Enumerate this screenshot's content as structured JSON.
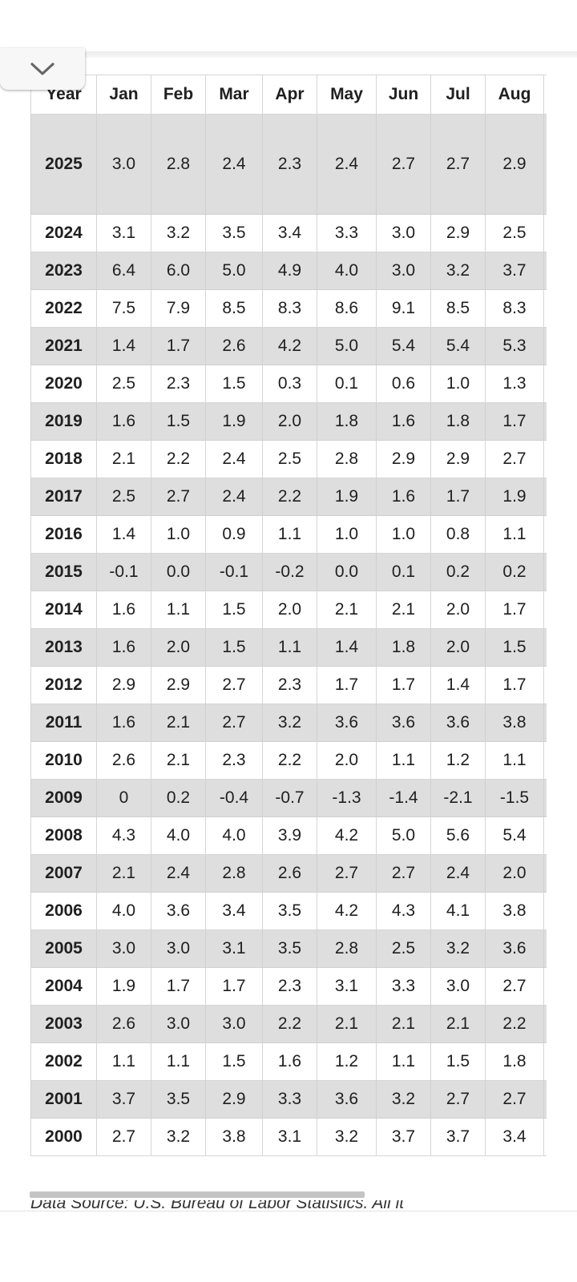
{
  "table": {
    "headers": [
      "Year",
      "Jan",
      "Feb",
      "Mar",
      "Apr",
      "May",
      "Jun",
      "Jul",
      "Aug",
      ""
    ],
    "rows": [
      {
        "year": "2025",
        "values": [
          "3.0",
          "2.8",
          "2.4",
          "2.3",
          "2.4",
          "2.7",
          "2.7",
          "2.9",
          ""
        ]
      },
      {
        "year": "2024",
        "values": [
          "3.1",
          "3.2",
          "3.5",
          "3.4",
          "3.3",
          "3.0",
          "2.9",
          "2.5",
          ""
        ]
      },
      {
        "year": "2023",
        "values": [
          "6.4",
          "6.0",
          "5.0",
          "4.9",
          "4.0",
          "3.0",
          "3.2",
          "3.7",
          ""
        ]
      },
      {
        "year": "2022",
        "values": [
          "7.5",
          "7.9",
          "8.5",
          "8.3",
          "8.6",
          "9.1",
          "8.5",
          "8.3",
          ""
        ]
      },
      {
        "year": "2021",
        "values": [
          "1.4",
          "1.7",
          "2.6",
          "4.2",
          "5.0",
          "5.4",
          "5.4",
          "5.3",
          ""
        ]
      },
      {
        "year": "2020",
        "values": [
          "2.5",
          "2.3",
          "1.5",
          "0.3",
          "0.1",
          "0.6",
          "1.0",
          "1.3",
          ""
        ]
      },
      {
        "year": "2019",
        "values": [
          "1.6",
          "1.5",
          "1.9",
          "2.0",
          "1.8",
          "1.6",
          "1.8",
          "1.7",
          ""
        ]
      },
      {
        "year": "2018",
        "values": [
          "2.1",
          "2.2",
          "2.4",
          "2.5",
          "2.8",
          "2.9",
          "2.9",
          "2.7",
          ""
        ]
      },
      {
        "year": "2017",
        "values": [
          "2.5",
          "2.7",
          "2.4",
          "2.2",
          "1.9",
          "1.6",
          "1.7",
          "1.9",
          ""
        ]
      },
      {
        "year": "2016",
        "values": [
          "1.4",
          "1.0",
          "0.9",
          "1.1",
          "1.0",
          "1.0",
          "0.8",
          "1.1",
          ""
        ]
      },
      {
        "year": "2015",
        "values": [
          "-0.1",
          "0.0",
          "-0.1",
          "-0.2",
          "0.0",
          "0.1",
          "0.2",
          "0.2",
          ""
        ]
      },
      {
        "year": "2014",
        "values": [
          "1.6",
          "1.1",
          "1.5",
          "2.0",
          "2.1",
          "2.1",
          "2.0",
          "1.7",
          ""
        ]
      },
      {
        "year": "2013",
        "values": [
          "1.6",
          "2.0",
          "1.5",
          "1.1",
          "1.4",
          "1.8",
          "2.0",
          "1.5",
          ""
        ]
      },
      {
        "year": "2012",
        "values": [
          "2.9",
          "2.9",
          "2.7",
          "2.3",
          "1.7",
          "1.7",
          "1.4",
          "1.7",
          ""
        ]
      },
      {
        "year": "2011",
        "values": [
          "1.6",
          "2.1",
          "2.7",
          "3.2",
          "3.6",
          "3.6",
          "3.6",
          "3.8",
          ""
        ]
      },
      {
        "year": "2010",
        "values": [
          "2.6",
          "2.1",
          "2.3",
          "2.2",
          "2.0",
          "1.1",
          "1.2",
          "1.1",
          ""
        ]
      },
      {
        "year": "2009",
        "values": [
          "0",
          "0.2",
          "-0.4",
          "-0.7",
          "-1.3",
          "-1.4",
          "-2.1",
          "-1.5",
          ""
        ]
      },
      {
        "year": "2008",
        "values": [
          "4.3",
          "4.0",
          "4.0",
          "3.9",
          "4.2",
          "5.0",
          "5.6",
          "5.4",
          ""
        ]
      },
      {
        "year": "2007",
        "values": [
          "2.1",
          "2.4",
          "2.8",
          "2.6",
          "2.7",
          "2.7",
          "2.4",
          "2.0",
          ""
        ]
      },
      {
        "year": "2006",
        "values": [
          "4.0",
          "3.6",
          "3.4",
          "3.5",
          "4.2",
          "4.3",
          "4.1",
          "3.8",
          ""
        ]
      },
      {
        "year": "2005",
        "values": [
          "3.0",
          "3.0",
          "3.1",
          "3.5",
          "2.8",
          "2.5",
          "3.2",
          "3.6",
          ""
        ]
      },
      {
        "year": "2004",
        "values": [
          "1.9",
          "1.7",
          "1.7",
          "2.3",
          "3.1",
          "3.3",
          "3.0",
          "2.7",
          ""
        ]
      },
      {
        "year": "2003",
        "values": [
          "2.6",
          "3.0",
          "3.0",
          "2.2",
          "2.1",
          "2.1",
          "2.1",
          "2.2",
          ""
        ]
      },
      {
        "year": "2002",
        "values": [
          "1.1",
          "1.1",
          "1.5",
          "1.6",
          "1.2",
          "1.1",
          "1.5",
          "1.8",
          ""
        ]
      },
      {
        "year": "2001",
        "values": [
          "3.7",
          "3.5",
          "2.9",
          "3.3",
          "3.6",
          "3.2",
          "2.7",
          "2.7",
          ""
        ]
      },
      {
        "year": "2000",
        "values": [
          "2.7",
          "3.2",
          "3.8",
          "3.1",
          "3.2",
          "3.7",
          "3.7",
          "3.4",
          ""
        ]
      }
    ]
  },
  "footnote": "Data Source: U.S. Bureau of Labor Statistics. All it",
  "icons": {
    "collapse": "chevron-down-icon"
  },
  "colors": {
    "shaded_row": "#dedede",
    "border": "#d6d6d6",
    "text": "#202020"
  }
}
